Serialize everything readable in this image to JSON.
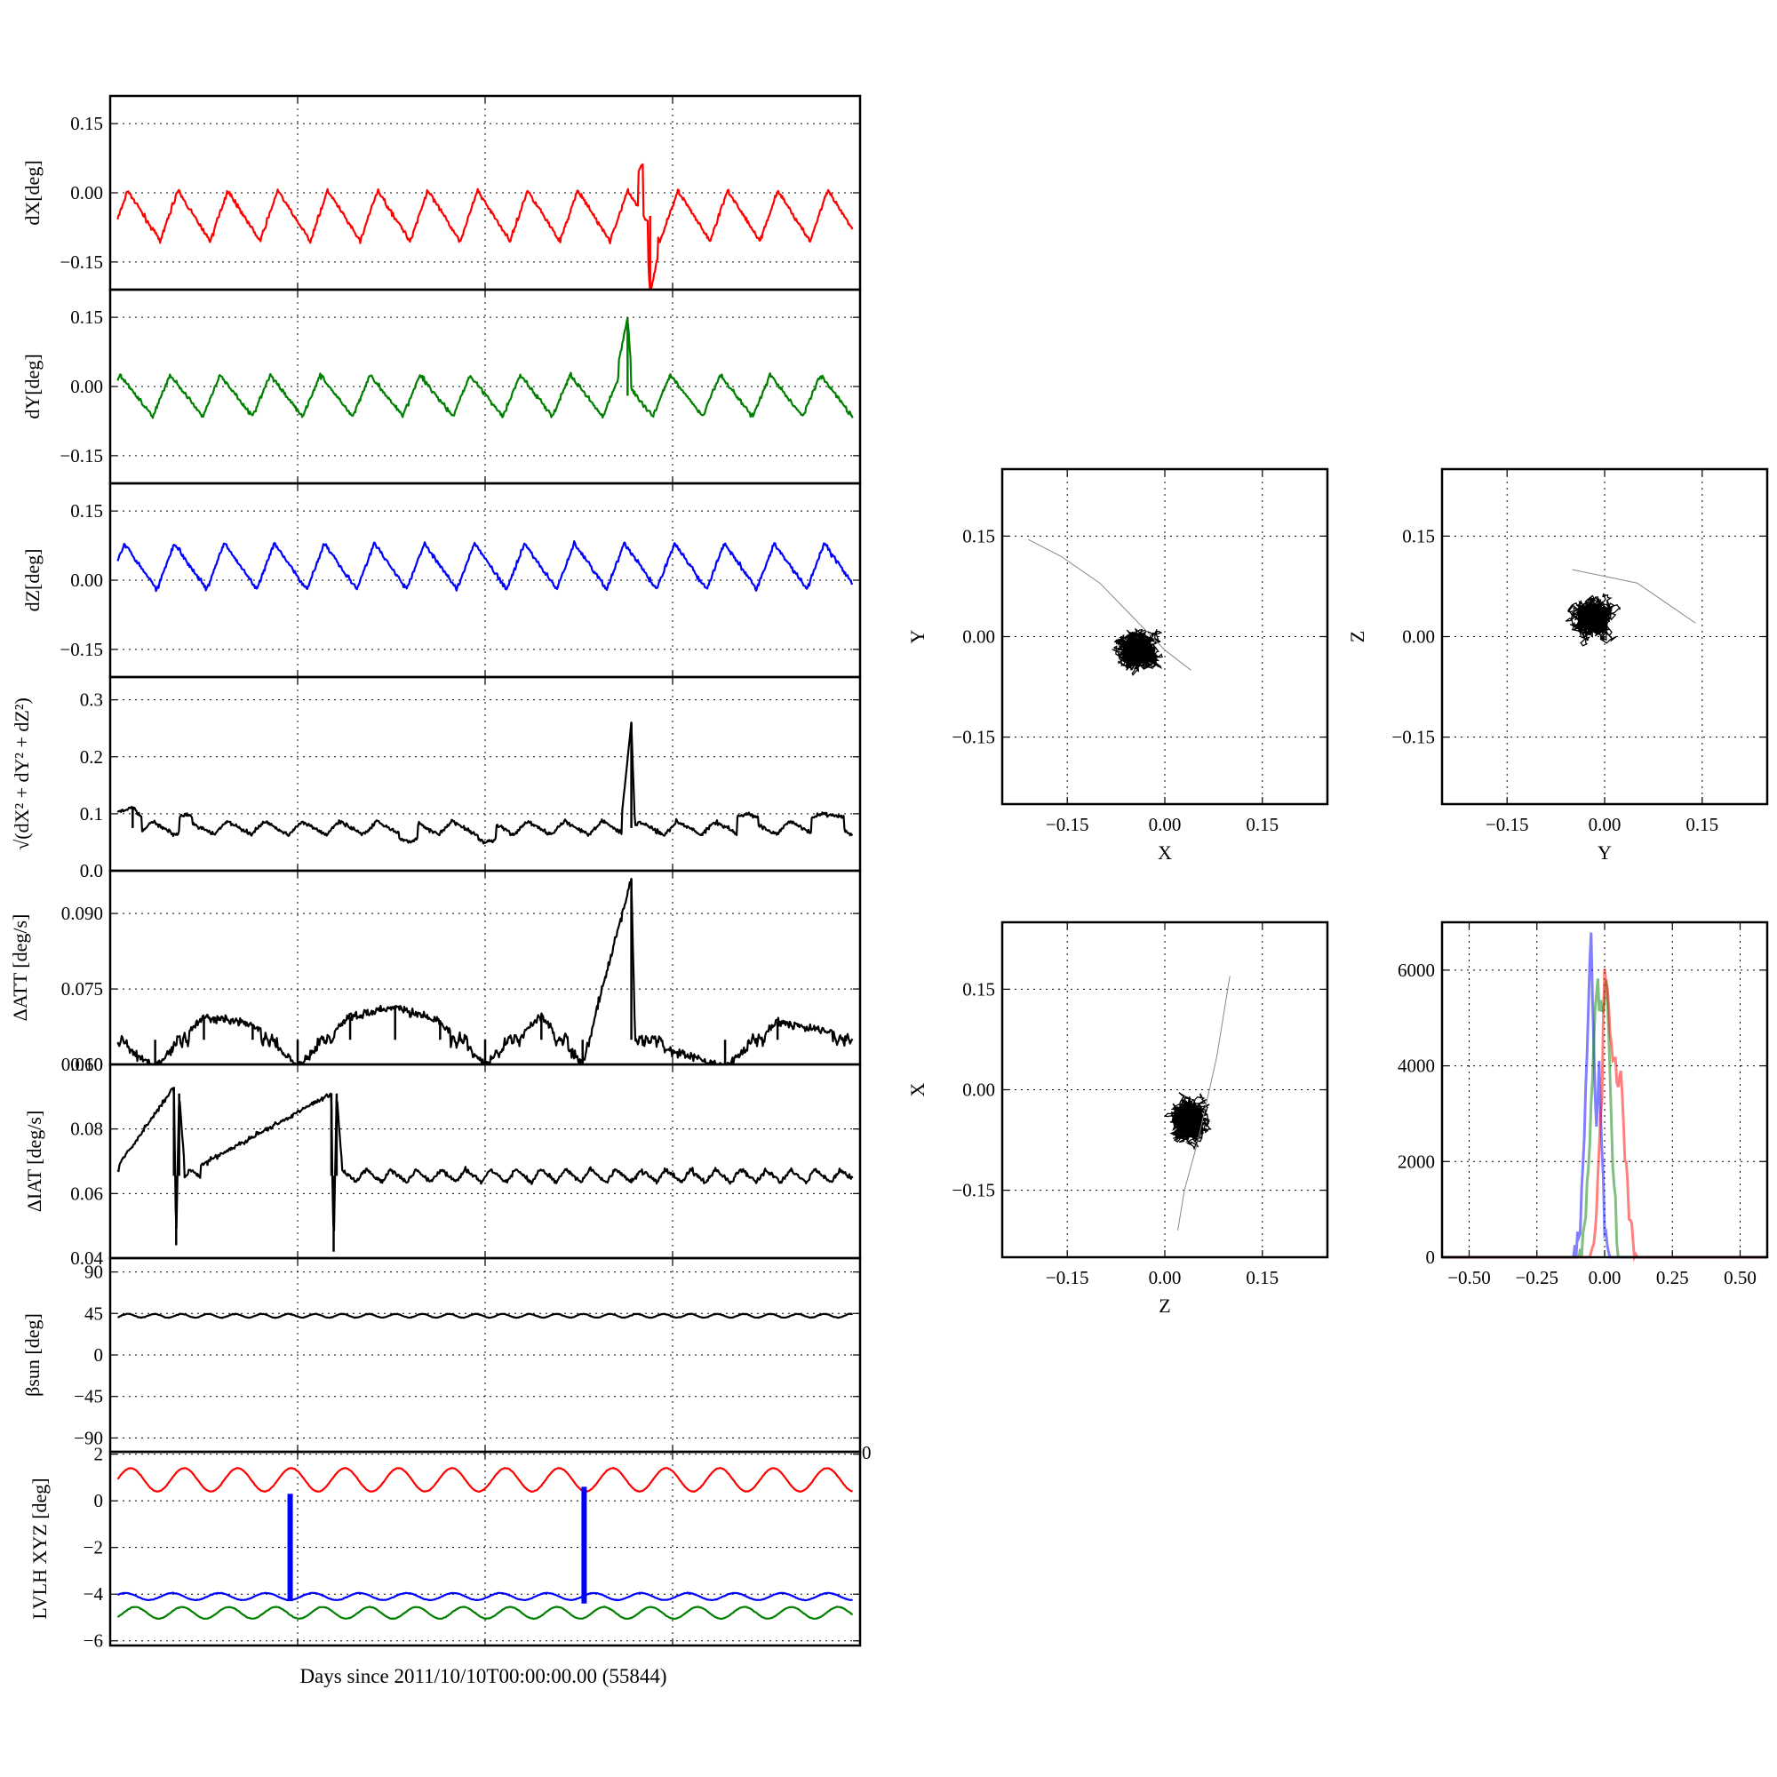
{
  "figure": {
    "xlabel": "Days since 2011/10/10T00:00:00.00 (55844)"
  },
  "chart_data": [
    {
      "id": "dx",
      "type": "line",
      "ylabel": "dX[deg]",
      "xlim": [
        0,
        100
      ],
      "ylim": [
        -0.21,
        0.21
      ],
      "yticks": [
        -0.15,
        0.0,
        0.15
      ],
      "yticklabels": [
        "−0.15",
        "0.00",
        "0.15"
      ],
      "color": "#ff0000",
      "pattern": {
        "base": -0.05,
        "amp": 0.055,
        "periods": 15
      },
      "series": [
        {
          "x": [
            0,
            3.4,
            6.8,
            10,
            13.6,
            17,
            20.4,
            24,
            27,
            30.5,
            34,
            37.5,
            41,
            44,
            47.5,
            51,
            54.5,
            58,
            61.5,
            65,
            68.5,
            71,
            72,
            75,
            78,
            81.5,
            85,
            88.5,
            92,
            95.5,
            100
          ],
          "y": [
            -0.04,
            0.01,
            -0.1,
            0.02,
            -0.06,
            0.03,
            -0.09,
            -0.02,
            -0.07,
            -0.02,
            -0.07,
            0.0,
            -0.08,
            0.01,
            -0.07,
            0.0,
            -0.08,
            -0.01,
            -0.08,
            0.0,
            -0.06,
            0.07,
            -0.22,
            0.01,
            -0.08,
            0.02,
            -0.06,
            0.03,
            -0.09,
            -0.02,
            -0.06
          ]
        }
      ]
    },
    {
      "id": "dy",
      "type": "line",
      "ylabel": "dY[deg]",
      "xlim": [
        0,
        100
      ],
      "ylim": [
        -0.21,
        0.21
      ],
      "yticks": [
        -0.15,
        0.0,
        0.15
      ],
      "yticklabels": [
        "−0.15",
        "0.00",
        "0.15"
      ],
      "color": "#008000",
      "pattern": {
        "base": -0.02,
        "amp": 0.045,
        "periods": 15
      },
      "series": [
        {
          "x": [
            0,
            3.5,
            7,
            10.5,
            14,
            17.5,
            21,
            24.5,
            28,
            31.5,
            35,
            38.5,
            42,
            45.5,
            49,
            52.5,
            56,
            59.5,
            63,
            66.5,
            69,
            70,
            73,
            76.5,
            80,
            83.5,
            87,
            90.5,
            94,
            97.5,
            100
          ],
          "y": [
            0.05,
            -0.07,
            0.04,
            -0.05,
            0.03,
            -0.06,
            0.02,
            -0.05,
            0.03,
            -0.06,
            0.02,
            -0.05,
            0.04,
            -0.06,
            0.03,
            -0.04,
            0.02,
            -0.06,
            0.03,
            -0.05,
            0.15,
            -0.08,
            0.03,
            -0.06,
            0.02,
            -0.09,
            0.01,
            -0.07,
            0.0,
            -0.06,
            -0.06
          ]
        }
      ]
    },
    {
      "id": "dz",
      "type": "line",
      "ylabel": "dZ[deg]",
      "xlim": [
        0,
        100
      ],
      "ylim": [
        -0.21,
        0.21
      ],
      "yticks": [
        -0.15,
        0.0,
        0.15
      ],
      "yticklabels": [
        "−0.15",
        "0.00",
        "0.15"
      ],
      "color": "#0000ff",
      "pattern": {
        "base": 0.03,
        "amp": 0.05,
        "periods": 15
      },
      "series": [
        {
          "x": [
            0,
            2.5,
            6,
            9.5,
            13,
            16.5,
            20,
            23.5,
            27,
            30.5,
            34,
            37.5,
            41,
            44.5,
            48,
            51.5,
            55,
            58.5,
            62,
            65.5,
            69,
            70,
            72,
            75.5,
            79,
            82.5,
            86,
            89.5,
            93,
            96.5,
            100
          ],
          "y": [
            0.08,
            -0.03,
            0.11,
            -0.01,
            0.09,
            0.0,
            0.09,
            -0.01,
            0.09,
            -0.02,
            0.05,
            -0.02,
            0.06,
            -0.01,
            0.07,
            0.0,
            0.09,
            0.0,
            0.09,
            -0.01,
            0.1,
            0.03,
            0.08,
            -0.01,
            0.08,
            0.0,
            0.09,
            -0.01,
            0.11,
            0.03,
            0.03
          ]
        }
      ]
    },
    {
      "id": "mag",
      "type": "line",
      "ylabel": "√(dX² + dY² + dZ²)",
      "xlim": [
        0,
        100
      ],
      "ylim": [
        0,
        0.34
      ],
      "yticks": [
        0.0,
        0.1,
        0.2,
        0.3
      ],
      "yticklabels": [
        "0.0",
        "0.1",
        "0.2",
        "0.3"
      ],
      "color": "#000000",
      "pattern": {
        "base": 0.075,
        "amp": 0.012,
        "periods": 20
      },
      "series": [
        {
          "x": [
            0,
            3,
            6,
            10,
            15,
            20,
            25,
            30,
            35,
            40,
            45,
            50,
            55,
            60,
            65,
            68,
            69.5,
            70,
            72,
            76,
            80,
            85,
            90,
            95,
            100
          ],
          "y": [
            0.1,
            0.11,
            0.07,
            0.1,
            0.07,
            0.08,
            0.06,
            0.06,
            0.07,
            0.05,
            0.08,
            0.05,
            0.07,
            0.06,
            0.08,
            0.07,
            0.26,
            0.07,
            0.08,
            0.07,
            0.08,
            0.1,
            0.08,
            0.1,
            0.09
          ]
        }
      ]
    },
    {
      "id": "datt",
      "type": "line",
      "ylabel": "ΔATT [deg/s]",
      "xlim": [
        0,
        100
      ],
      "ylim": [
        0.06,
        0.0985
      ],
      "yticks": [
        0.06,
        0.075,
        0.09
      ],
      "yticklabels": [
        "0.060",
        "0.075",
        "0.090"
      ],
      "color": "#000000",
      "pattern": {
        "base": 0.0649,
        "amp": 0.001,
        "periods": 120
      },
      "series": [
        {
          "x": [
            0,
            6,
            12.5,
            19,
            25,
            32,
            38,
            44,
            50,
            57.5,
            63,
            69.5,
            70,
            82,
            89,
            100
          ],
          "y": [
            0.0655,
            0.0595,
            0.0695,
            0.068,
            0.0595,
            0.0695,
            0.0715,
            0.0685,
            0.06,
            0.0695,
            0.06,
            0.097,
            0.065,
            0.0595,
            0.0685,
            0.0655
          ]
        }
      ]
    },
    {
      "id": "diat",
      "type": "line",
      "ylabel": "ΔIAT [deg/s]",
      "xlim": [
        0,
        100
      ],
      "ylim": [
        0.04,
        0.1
      ],
      "yticks": [
        0.04,
        0.06,
        0.08,
        0.1
      ],
      "yticklabels": [
        "0.04",
        "0.06",
        "0.08",
        "0.10"
      ],
      "color": "#000000",
      "pattern": {
        "base": 0.0655,
        "amp": 0.002,
        "periods": 30
      },
      "series": [
        {
          "x": [
            0,
            8.5,
            8.8,
            9.2,
            10,
            29.5,
            29.8,
            30.2,
            31,
            100
          ],
          "y": [
            0.065,
            0.093,
            0.044,
            0.091,
            0.066,
            0.091,
            0.042,
            0.091,
            0.066,
            0.065
          ]
        }
      ]
    },
    {
      "id": "beta",
      "type": "line",
      "ylabel": "βsun [deg]",
      "xlim": [
        0,
        100
      ],
      "ylim": [
        -105,
        105
      ],
      "yticks": [
        -90,
        -45,
        0,
        45,
        90
      ],
      "yticklabels": [
        "−90",
        "−45",
        "0",
        "45",
        "90"
      ],
      "color": "#000000",
      "pattern": {
        "base": 42.5,
        "amp": 2.0,
        "periods": 28
      },
      "series": [
        {
          "x": [
            0,
            50,
            100
          ],
          "y": [
            42.5,
            42.5,
            42.5
          ]
        }
      ]
    },
    {
      "id": "lvlh",
      "type": "line",
      "ylabel": "LVLH XYZ [deg]",
      "xlim": [
        0,
        100
      ],
      "ylim": [
        -6.2,
        2.1
      ],
      "yticks": [
        -6,
        -4,
        -2,
        0,
        2
      ],
      "yticklabels": [
        "−6",
        "−4",
        "−2",
        "0",
        "2"
      ],
      "extra_right_label": "0",
      "series": [
        {
          "color": "#ff0000",
          "pattern": {
            "base": 0.9,
            "amp": 0.5,
            "periods": 14
          },
          "x": [
            0,
            100
          ],
          "y": [
            0.9,
            0.9
          ]
        },
        {
          "color": "#0000ff",
          "pattern": {
            "base": -4.1,
            "amp": 0.15,
            "periods": 16
          },
          "x": [
            0,
            100
          ],
          "y": [
            -4.1,
            -4.1
          ]
        },
        {
          "color": "#008000",
          "pattern": {
            "base": -4.8,
            "amp": 0.25,
            "periods": 16
          },
          "x": [
            0,
            100
          ],
          "y": [
            -4.8,
            -4.8
          ]
        },
        {
          "color": "#0000ff",
          "kind": "spike",
          "x": [
            24,
            24
          ],
          "y": [
            0.3,
            -4.3
          ]
        },
        {
          "color": "#0000ff",
          "kind": "spike",
          "x": [
            63.2,
            63.2
          ],
          "y": [
            0.6,
            -4.4
          ]
        }
      ]
    },
    {
      "id": "xy",
      "type": "scatter",
      "xlabel": "X",
      "ylabel": "Y",
      "xlim": [
        -0.25,
        0.25
      ],
      "ylim": [
        -0.25,
        0.25
      ],
      "ticks": [
        -0.15,
        0.0,
        0.15
      ],
      "ticklabels": [
        "−0.15",
        "0.00",
        "0.15"
      ],
      "cloud": {
        "center": [
          -0.04,
          -0.02
        ],
        "spread": [
          0.045,
          0.05
        ]
      },
      "trail": {
        "x": [
          -0.21,
          -0.16,
          -0.1,
          -0.05,
          0.0,
          0.04
        ],
        "y": [
          0.145,
          0.12,
          0.08,
          0.03,
          -0.02,
          -0.05
        ]
      }
    },
    {
      "id": "yz",
      "type": "scatter",
      "xlabel": "Y",
      "ylabel": "Z",
      "xlim": [
        -0.25,
        0.25
      ],
      "ylim": [
        -0.25,
        0.25
      ],
      "ticks": [
        -0.15,
        0.0,
        0.15
      ],
      "ticklabels": [
        "−0.15",
        "0.00",
        "0.15"
      ],
      "cloud": {
        "center": [
          -0.02,
          0.03
        ],
        "spread": [
          0.05,
          0.045
        ]
      },
      "trail": {
        "x": [
          -0.05,
          0.0,
          0.05,
          0.08,
          0.11,
          0.14
        ],
        "y": [
          0.1,
          0.09,
          0.08,
          0.06,
          0.04,
          0.02
        ]
      }
    },
    {
      "id": "zx",
      "type": "scatter",
      "xlabel": "Z",
      "ylabel": "X",
      "xlim": [
        -0.25,
        0.25
      ],
      "ylim": [
        -0.25,
        0.25
      ],
      "ticks": [
        -0.15,
        0.0,
        0.15
      ],
      "ticklabels": [
        "−0.15",
        "0.00",
        "0.15"
      ],
      "cloud": {
        "center": [
          0.04,
          -0.05
        ],
        "spread": [
          0.055,
          0.035
        ]
      },
      "trail": {
        "x": [
          0.02,
          0.03,
          0.05,
          0.08,
          0.1
        ],
        "y": [
          -0.21,
          -0.15,
          -0.08,
          0.05,
          0.17
        ]
      }
    },
    {
      "id": "hist",
      "type": "line",
      "xlim": [
        -0.6,
        0.6
      ],
      "ylim": [
        0,
        7000
      ],
      "xticks": [
        -0.5,
        -0.25,
        0.0,
        0.25,
        0.5
      ],
      "xticklabels": [
        "−0.50",
        "−0.25",
        "0.00",
        "0.25",
        "0.50"
      ],
      "yticks": [
        0,
        2000,
        4000,
        6000
      ],
      "yticklabels": [
        "0",
        "2000",
        "4000",
        "6000"
      ],
      "series": [
        {
          "color": "#0000ff",
          "x": [
            -0.6,
            -0.12,
            -0.09,
            -0.07,
            -0.05,
            -0.04,
            -0.03,
            -0.02,
            0.0,
            0.02,
            0.6
          ],
          "y": [
            0,
            0,
            500,
            3500,
            6900,
            4500,
            2500,
            4000,
            500,
            0,
            0
          ]
        },
        {
          "color": "#008000",
          "x": [
            -0.6,
            -0.09,
            -0.07,
            -0.05,
            -0.03,
            -0.01,
            0.0,
            0.01,
            0.03,
            0.05,
            0.6
          ],
          "y": [
            0,
            0,
            800,
            3000,
            5800,
            5200,
            5600,
            5400,
            2000,
            0,
            0
          ]
        },
        {
          "color": "#ff0000",
          "x": [
            -0.6,
            -0.05,
            -0.03,
            -0.01,
            0.0,
            0.01,
            0.03,
            0.06,
            0.09,
            0.12,
            0.6
          ],
          "y": [
            0,
            0,
            900,
            3500,
            6100,
            5500,
            4200,
            3600,
            900,
            0,
            0
          ]
        }
      ]
    }
  ]
}
